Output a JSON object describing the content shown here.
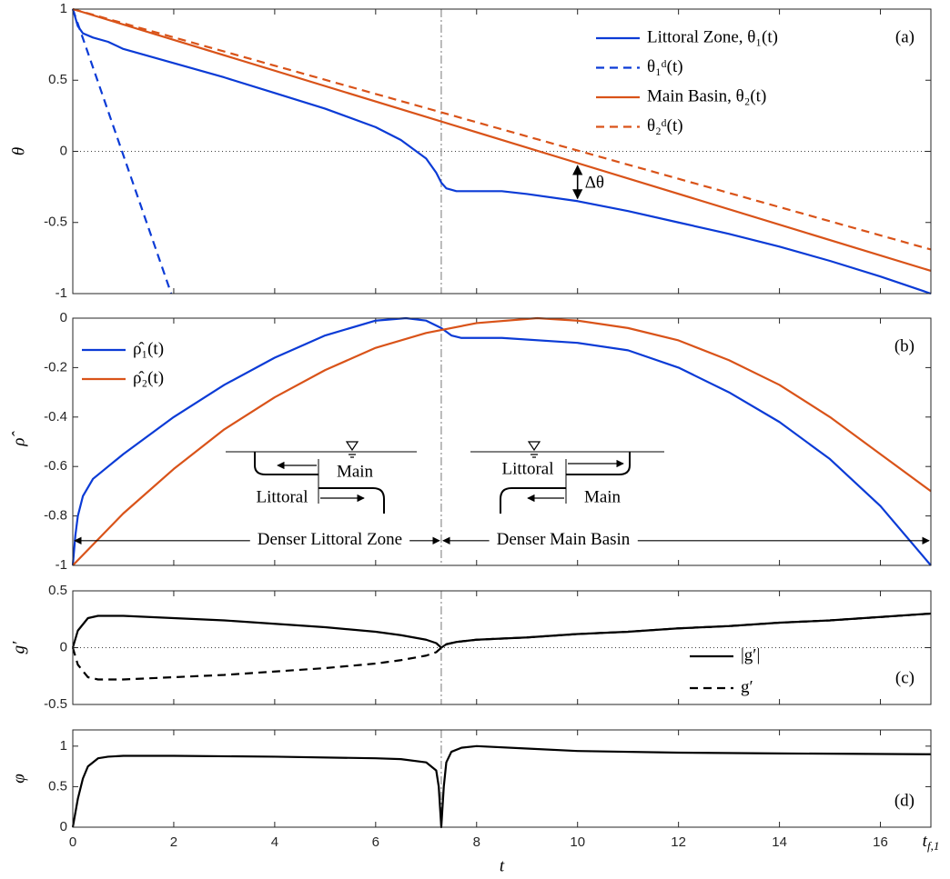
{
  "chart_data": [
    {
      "type": "line",
      "panel_label": "(a)",
      "ylabel": "θ",
      "ylim": [
        -1,
        1
      ],
      "yticks": [
        -1,
        -0.5,
        0,
        0.5,
        1
      ],
      "hline": 0,
      "vline": 7.3,
      "legend": "upper right",
      "annotation": "Δθ",
      "annotation_x": 10,
      "series": [
        {
          "name": "Littoral Zone, θ₁(t)",
          "color": "#0b3bd6",
          "dash": false,
          "x": [
            0,
            0.1,
            0.2,
            0.4,
            0.7,
            1,
            2,
            3,
            4,
            5,
            6,
            6.5,
            7,
            7.2,
            7.3,
            7.4,
            7.6,
            8,
            8.5,
            9,
            10,
            11,
            12,
            13,
            14,
            15,
            16,
            17
          ],
          "values": [
            1,
            0.88,
            0.83,
            0.8,
            0.77,
            0.72,
            0.62,
            0.52,
            0.41,
            0.3,
            0.17,
            0.08,
            -0.05,
            -0.15,
            -0.22,
            -0.26,
            -0.28,
            -0.28,
            -0.28,
            -0.3,
            -0.35,
            -0.42,
            -0.5,
            -0.58,
            -0.67,
            -0.77,
            -0.88,
            -1
          ]
        },
        {
          "name": "θ₁ᵈ(t)",
          "color": "#0b3bd6",
          "dash": true,
          "x": [
            0,
            1.95
          ],
          "values": [
            1,
            -1
          ]
        },
        {
          "name": "Main Basin, θ₂(t)",
          "color": "#d95319",
          "dash": false,
          "x": [
            0,
            17
          ],
          "values": [
            1,
            -0.84
          ]
        },
        {
          "name": "θ₂ᵈ(t)",
          "color": "#d95319",
          "dash": true,
          "x": [
            0,
            17
          ],
          "values": [
            1,
            -0.69
          ]
        }
      ]
    },
    {
      "type": "line",
      "panel_label": "(b)",
      "ylabel": "ρ̂",
      "ylim": [
        -1,
        0
      ],
      "yticks": [
        -1,
        -0.8,
        -0.6,
        -0.4,
        -0.2,
        0
      ],
      "vline": 7.3,
      "legend": "upper left",
      "regions": [
        "Denser Littoral Zone",
        "Denser Main Basin"
      ],
      "region_y": -0.9,
      "inset_labels": [
        "Main",
        "Littoral",
        "Littoral",
        "Main"
      ],
      "series": [
        {
          "name": "ρ̂₁(t)",
          "color": "#0b3bd6",
          "dash": false,
          "x": [
            0,
            0.05,
            0.1,
            0.2,
            0.4,
            0.7,
            1,
            2,
            3,
            4,
            5,
            6,
            6.6,
            7,
            7.3,
            7.5,
            7.7,
            8.5,
            10,
            11,
            12,
            13,
            14,
            15,
            16,
            17
          ],
          "values": [
            -1,
            -0.88,
            -0.8,
            -0.72,
            -0.65,
            -0.6,
            -0.55,
            -0.4,
            -0.27,
            -0.16,
            -0.07,
            -0.01,
            0,
            -0.01,
            -0.04,
            -0.07,
            -0.08,
            -0.08,
            -0.1,
            -0.13,
            -0.2,
            -0.3,
            -0.42,
            -0.57,
            -0.76,
            -1
          ]
        },
        {
          "name": "ρ̂₂(t)",
          "color": "#d95319",
          "dash": false,
          "x": [
            0,
            1,
            2,
            3,
            4,
            5,
            6,
            7,
            8,
            9.2,
            10,
            11,
            12,
            13,
            14,
            15,
            16,
            17
          ],
          "values": [
            -1,
            -0.79,
            -0.61,
            -0.45,
            -0.32,
            -0.21,
            -0.12,
            -0.06,
            -0.02,
            0,
            -0.01,
            -0.04,
            -0.09,
            -0.17,
            -0.27,
            -0.4,
            -0.55,
            -0.7
          ]
        }
      ]
    },
    {
      "type": "line",
      "panel_label": "(c)",
      "ylabel": "g′",
      "ylim": [
        -0.5,
        0.5
      ],
      "yticks": [
        -0.5,
        0,
        0.5
      ],
      "hline": 0,
      "vline": 7.3,
      "legend": "lower right",
      "series": [
        {
          "name": "|g′|",
          "color": "#000000",
          "dash": false,
          "x": [
            0,
            0.1,
            0.3,
            0.5,
            1,
            2,
            3,
            4,
            5,
            6,
            6.5,
            7,
            7.2,
            7.3,
            7.4,
            7.6,
            8,
            9,
            10,
            11,
            12,
            13,
            14,
            15,
            16,
            17
          ],
          "values": [
            0,
            0.15,
            0.26,
            0.28,
            0.28,
            0.26,
            0.24,
            0.21,
            0.18,
            0.14,
            0.11,
            0.07,
            0.04,
            0,
            0.03,
            0.05,
            0.07,
            0.09,
            0.12,
            0.14,
            0.17,
            0.19,
            0.22,
            0.24,
            0.27,
            0.3
          ]
        },
        {
          "name": "g′",
          "color": "#000000",
          "dash": true,
          "x": [
            0,
            0.1,
            0.3,
            0.5,
            1,
            2,
            3,
            4,
            5,
            6,
            6.5,
            7,
            7.2,
            7.3,
            7.4,
            7.6,
            8,
            9,
            10,
            11,
            12,
            13,
            14,
            15,
            16,
            17
          ],
          "values": [
            0,
            -0.15,
            -0.26,
            -0.28,
            -0.28,
            -0.26,
            -0.24,
            -0.21,
            -0.18,
            -0.14,
            -0.11,
            -0.07,
            -0.04,
            0,
            0.03,
            0.05,
            0.07,
            0.09,
            0.12,
            0.14,
            0.17,
            0.19,
            0.22,
            0.24,
            0.27,
            0.3
          ]
        }
      ]
    },
    {
      "type": "line",
      "panel_label": "(d)",
      "ylabel": "φ",
      "xlabel": "t",
      "ylim": [
        0,
        1.2
      ],
      "yticks": [
        0,
        0.5,
        1
      ],
      "vline": 7.3,
      "xlim": [
        0,
        17
      ],
      "xticks": [
        0,
        2,
        4,
        6,
        8,
        10,
        12,
        14,
        16,
        {
          "value": 17,
          "label": "tf,1"
        }
      ],
      "series": [
        {
          "color": "#000000",
          "dash": false,
          "x": [
            0,
            0.1,
            0.2,
            0.3,
            0.5,
            0.7,
            1,
            2,
            4,
            6,
            6.5,
            7,
            7.2,
            7.25,
            7.3,
            7.35,
            7.4,
            7.5,
            7.7,
            8,
            9,
            10,
            12,
            14,
            17
          ],
          "values": [
            0,
            0.35,
            0.6,
            0.75,
            0.85,
            0.87,
            0.88,
            0.88,
            0.87,
            0.85,
            0.84,
            0.8,
            0.7,
            0.5,
            0,
            0.5,
            0.8,
            0.93,
            0.98,
            1,
            0.97,
            0.94,
            0.92,
            0.91,
            0.9
          ]
        }
      ]
    }
  ]
}
